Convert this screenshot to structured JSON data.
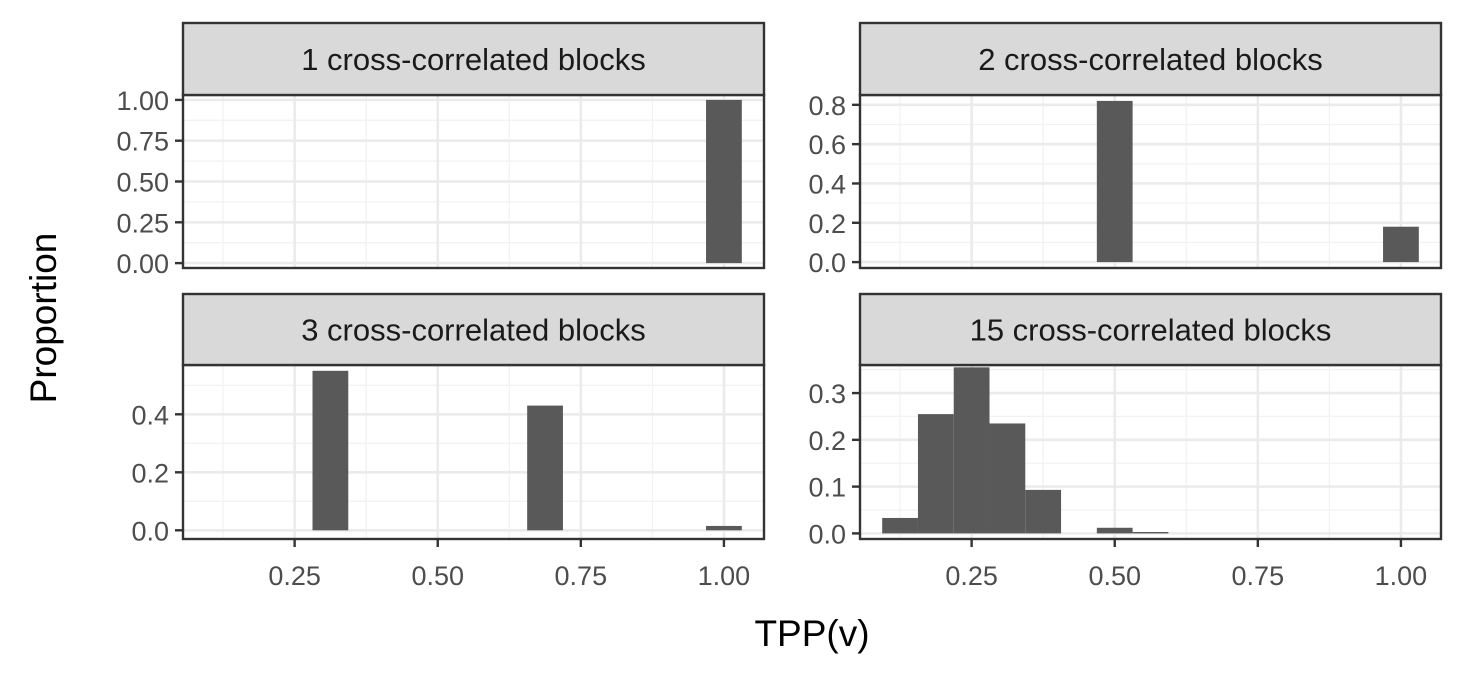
{
  "chart_data": {
    "type": "bar",
    "xlabel": "TPP(v)",
    "ylabel": "Proportion",
    "facet_layout": "2x2",
    "shared_x": true,
    "x_ticks": [
      0.25,
      0.5,
      0.75,
      1.0
    ],
    "x_tick_labels": [
      "0.25",
      "0.50",
      "0.75",
      "1.00"
    ],
    "xlim": [
      0.055,
      1.07
    ],
    "bin_width": 0.0625,
    "bar_color": "#595959",
    "panels": [
      {
        "title": "1 cross-correlated blocks",
        "ylim": [
          -0.03,
          1.03
        ],
        "y_ticks": [
          0,
          0.25,
          0.5,
          0.75,
          1.0
        ],
        "y_tick_labels": [
          "0.00",
          "0.25",
          "0.50",
          "0.75",
          "1.00"
        ],
        "bars": [
          {
            "x": 1.0,
            "value": 1.0
          }
        ]
      },
      {
        "title": "2 cross-correlated blocks",
        "ylim": [
          -0.03,
          0.85
        ],
        "y_ticks": [
          0,
          0.2,
          0.4,
          0.6,
          0.8
        ],
        "y_tick_labels": [
          "0.0",
          "0.2",
          "0.4",
          "0.6",
          "0.8"
        ],
        "bars": [
          {
            "x": 0.5,
            "value": 0.82
          },
          {
            "x": 1.0,
            "value": 0.18
          }
        ]
      },
      {
        "title": "3 cross-correlated blocks",
        "ylim": [
          -0.03,
          0.57
        ],
        "y_ticks": [
          0,
          0.2,
          0.4
        ],
        "y_tick_labels": [
          "0.0",
          "0.2",
          "0.4"
        ],
        "bars": [
          {
            "x": 0.3125,
            "value": 0.55
          },
          {
            "x": 0.6875,
            "value": 0.43
          },
          {
            "x": 1.0,
            "value": 0.015
          }
        ]
      },
      {
        "title": "15 cross-correlated blocks",
        "ylim": [
          -0.012,
          0.36
        ],
        "y_ticks": [
          0,
          0.1,
          0.2,
          0.3
        ],
        "y_tick_labels": [
          "0.0",
          "0.1",
          "0.2",
          "0.3"
        ],
        "bars": [
          {
            "x": 0.125,
            "value": 0.033
          },
          {
            "x": 0.1875,
            "value": 0.255
          },
          {
            "x": 0.25,
            "value": 0.355
          },
          {
            "x": 0.3125,
            "value": 0.235
          },
          {
            "x": 0.375,
            "value": 0.093
          },
          {
            "x": 0.5,
            "value": 0.012
          },
          {
            "x": 0.5625,
            "value": 0.003
          }
        ]
      }
    ]
  }
}
